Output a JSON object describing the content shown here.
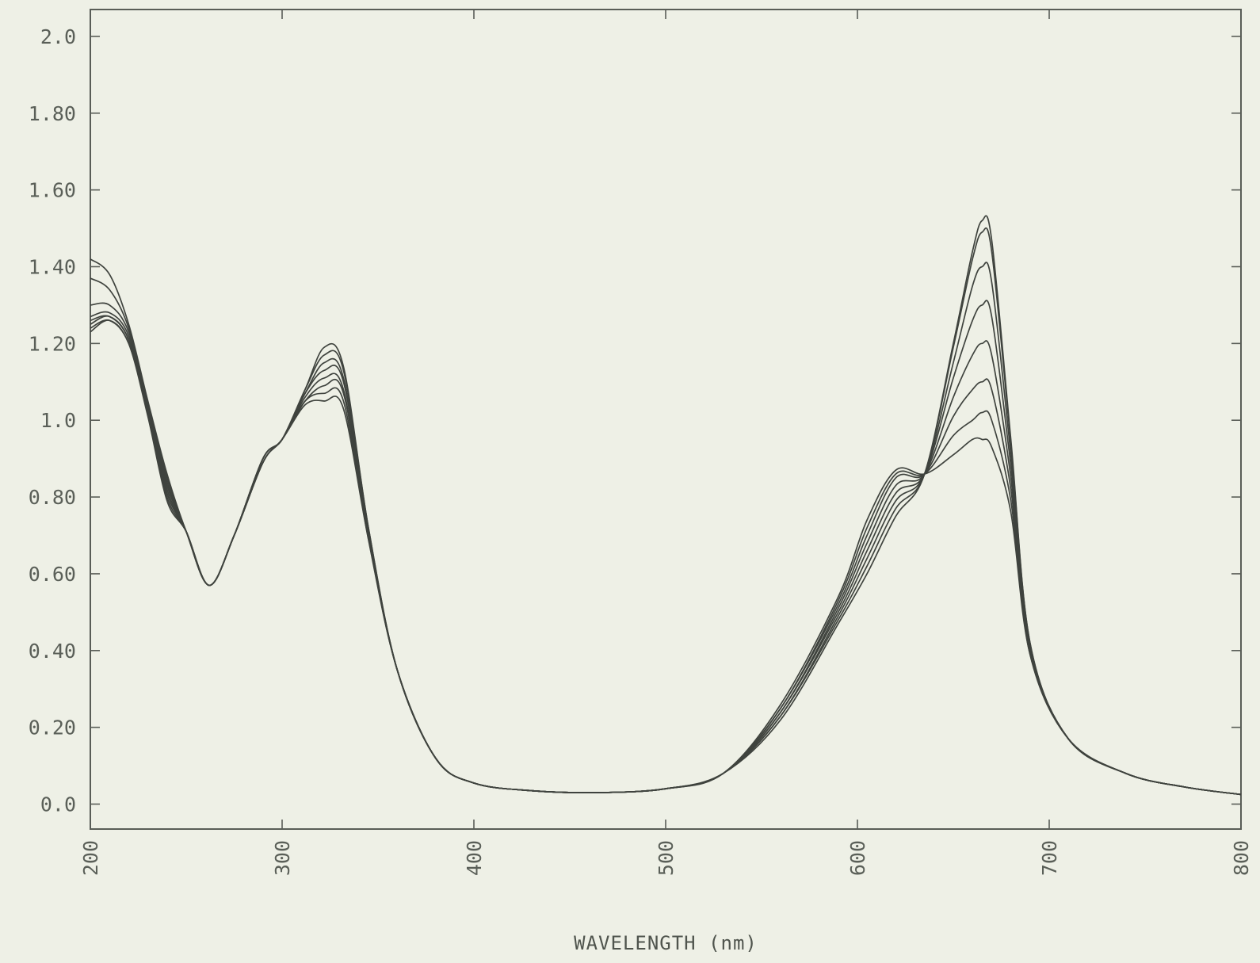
{
  "chart_data": {
    "type": "line",
    "title": "",
    "xlabel": "WAVELENGTH (nm)",
    "ylabel": "",
    "xlim": [
      200,
      800
    ],
    "ylim": [
      -0.065,
      2.07
    ],
    "grid": false,
    "legend": "none",
    "x_ticks": [
      200,
      300,
      400,
      500,
      600,
      700,
      800
    ],
    "x_tick_labels": [
      "200",
      "300",
      "400",
      "500",
      "600",
      "700",
      "800"
    ],
    "y_ticks": [
      0,
      0.2,
      0.4,
      0.6,
      0.8,
      1.0,
      1.2,
      1.4,
      1.6,
      1.8,
      2.0
    ],
    "y_tick_labels": [
      "0.0",
      "0.20",
      "0.40",
      "0.60",
      "0.80",
      "1.0",
      "1.20",
      "1.40",
      "1.60",
      "1.80",
      "2.0"
    ],
    "line_color": "#3f433e",
    "background_color": "#eef0e6",
    "x": [
      200,
      210,
      220,
      230,
      240,
      250,
      262,
      275,
      290,
      300,
      312,
      322,
      332,
      345,
      360,
      380,
      400,
      430,
      465,
      500,
      530,
      560,
      590,
      605,
      620,
      635,
      650,
      660,
      665,
      670,
      680,
      690,
      710,
      740,
      770,
      800
    ],
    "series": [
      {
        "values": [
          1.42,
          1.38,
          1.25,
          1.05,
          0.86,
          0.71,
          0.57,
          0.7,
          0.9,
          0.95,
          1.08,
          1.19,
          1.14,
          0.72,
          0.35,
          0.12,
          0.055,
          0.035,
          0.03,
          0.04,
          0.08,
          0.22,
          0.47,
          0.6,
          0.75,
          0.86,
          1.2,
          1.44,
          1.52,
          1.47,
          0.95,
          0.42,
          0.17,
          0.08,
          0.045,
          0.025
        ]
      },
      {
        "values": [
          1.37,
          1.34,
          1.24,
          1.04,
          0.85,
          0.71,
          0.57,
          0.7,
          0.9,
          0.95,
          1.08,
          1.17,
          1.13,
          0.72,
          0.35,
          0.12,
          0.055,
          0.035,
          0.03,
          0.04,
          0.08,
          0.23,
          0.48,
          0.62,
          0.77,
          0.86,
          1.19,
          1.42,
          1.49,
          1.44,
          0.94,
          0.42,
          0.17,
          0.08,
          0.045,
          0.025
        ]
      },
      {
        "values": [
          1.3,
          1.3,
          1.23,
          1.04,
          0.84,
          0.71,
          0.57,
          0.7,
          0.9,
          0.95,
          1.07,
          1.15,
          1.11,
          0.71,
          0.35,
          0.12,
          0.055,
          0.035,
          0.03,
          0.04,
          0.08,
          0.23,
          0.49,
          0.64,
          0.79,
          0.86,
          1.15,
          1.35,
          1.4,
          1.36,
          0.91,
          0.41,
          0.17,
          0.08,
          0.045,
          0.025
        ]
      },
      {
        "values": [
          1.27,
          1.28,
          1.22,
          1.03,
          0.83,
          0.71,
          0.57,
          0.7,
          0.9,
          0.95,
          1.07,
          1.13,
          1.1,
          0.71,
          0.35,
          0.12,
          0.055,
          0.035,
          0.03,
          0.04,
          0.08,
          0.24,
          0.5,
          0.66,
          0.81,
          0.86,
          1.11,
          1.26,
          1.3,
          1.27,
          0.88,
          0.41,
          0.17,
          0.08,
          0.045,
          0.025
        ]
      },
      {
        "values": [
          1.26,
          1.27,
          1.21,
          1.03,
          0.82,
          0.71,
          0.57,
          0.7,
          0.89,
          0.95,
          1.06,
          1.11,
          1.08,
          0.7,
          0.35,
          0.12,
          0.055,
          0.035,
          0.03,
          0.04,
          0.08,
          0.24,
          0.51,
          0.68,
          0.83,
          0.86,
          1.06,
          1.17,
          1.2,
          1.17,
          0.85,
          0.4,
          0.17,
          0.08,
          0.045,
          0.025
        ]
      },
      {
        "values": [
          1.25,
          1.27,
          1.21,
          1.02,
          0.81,
          0.71,
          0.57,
          0.7,
          0.89,
          0.95,
          1.05,
          1.09,
          1.07,
          0.7,
          0.35,
          0.12,
          0.055,
          0.035,
          0.03,
          0.04,
          0.08,
          0.25,
          0.52,
          0.7,
          0.85,
          0.86,
          1.01,
          1.08,
          1.1,
          1.08,
          0.82,
          0.4,
          0.17,
          0.08,
          0.045,
          0.025
        ]
      },
      {
        "values": [
          1.24,
          1.26,
          1.2,
          1.02,
          0.8,
          0.71,
          0.57,
          0.7,
          0.89,
          0.95,
          1.05,
          1.07,
          1.05,
          0.69,
          0.35,
          0.12,
          0.055,
          0.035,
          0.03,
          0.04,
          0.08,
          0.25,
          0.53,
          0.72,
          0.86,
          0.86,
          0.96,
          1.0,
          1.02,
          1.0,
          0.79,
          0.39,
          0.17,
          0.08,
          0.045,
          0.025
        ]
      },
      {
        "values": [
          1.23,
          1.26,
          1.2,
          1.01,
          0.79,
          0.71,
          0.57,
          0.7,
          0.89,
          0.95,
          1.04,
          1.05,
          1.03,
          0.69,
          0.35,
          0.12,
          0.055,
          0.035,
          0.03,
          0.04,
          0.08,
          0.26,
          0.54,
          0.74,
          0.87,
          0.86,
          0.91,
          0.95,
          0.95,
          0.93,
          0.76,
          0.39,
          0.17,
          0.08,
          0.045,
          0.025
        ]
      }
    ]
  }
}
